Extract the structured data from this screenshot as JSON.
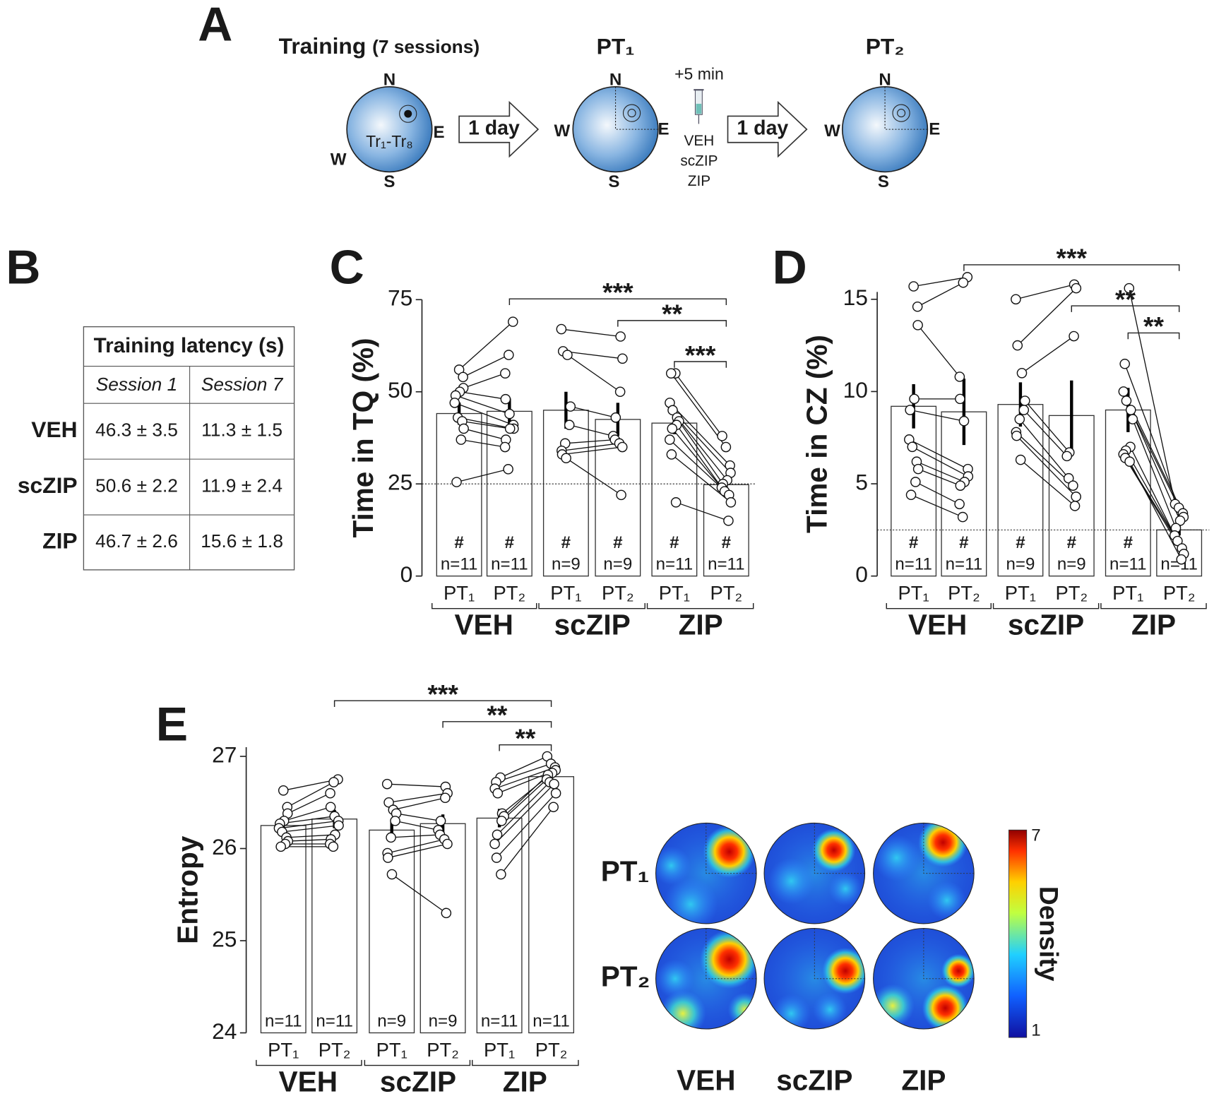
{
  "panels": [
    "A",
    "B",
    "C",
    "D",
    "E"
  ],
  "diagram": {
    "training": "Training",
    "sessions": "(7 sessions)",
    "compass": [
      "N",
      "E",
      "S",
      "W"
    ],
    "trials": "Tr₁-Tr₈",
    "arrow": "1 day",
    "pt1": "PT₁",
    "pt2": "PT₂",
    "inject_time": "+5 min",
    "drugs": [
      "VEH",
      "scZIP",
      "ZIP"
    ]
  },
  "table": {
    "title": "Training latency (s)",
    "columns": [
      "Session 1",
      "Session 7"
    ],
    "rows": [
      [
        "VEH",
        "46.3 ± 3.5",
        "11.3 ± 1.5"
      ],
      [
        "scZIP",
        "50.6 ± 2.2",
        "11.9 ± 2.4"
      ],
      [
        "ZIP",
        "46.7 ± 2.6",
        "15.6 ± 1.8"
      ]
    ]
  },
  "chart_data": [
    {
      "type": "bar",
      "ylabel": "Time in TQ (%)",
      "ylim": [
        0,
        75
      ],
      "yticks": [
        0,
        25,
        50,
        75
      ],
      "chance": 25,
      "categories": [
        "PT₁",
        "PT₂",
        "PT₁",
        "PT₂",
        "PT₁",
        "PT₂"
      ],
      "groups": [
        "VEH",
        "scZIP",
        "ZIP"
      ],
      "values": [
        44.1,
        44.7,
        45,
        42.5,
        41.5,
        24.8
      ],
      "errors": [
        3,
        3.5,
        5,
        4.5,
        3,
        2
      ],
      "marks": [
        "#",
        "#",
        "#",
        "#",
        "#",
        "#"
      ],
      "n_labels": [
        "n=11",
        "n=11",
        "n=9",
        "n=9",
        "n=11",
        "n=11"
      ],
      "points": [
        [
          56,
          54,
          51,
          50,
          49,
          47,
          43,
          42,
          40,
          37,
          25.5
        ],
        [
          69,
          60,
          55,
          48,
          44,
          41,
          40,
          40,
          37,
          35,
          29
        ],
        [
          67,
          61,
          60,
          46,
          41,
          36,
          34,
          33,
          32
        ],
        [
          65,
          59,
          50,
          43,
          38,
          37,
          36,
          35,
          22
        ],
        [
          55,
          55,
          47,
          45,
          43,
          42,
          41,
          40,
          37,
          33,
          20
        ],
        [
          38,
          35,
          30,
          28,
          26,
          25,
          24,
          23,
          22,
          20,
          15
        ]
      ],
      "significance": [
        "***",
        "**",
        "***"
      ]
    },
    {
      "type": "bar",
      "ylabel": "Time in CZ (%)",
      "ylim": [
        0,
        15.4
      ],
      "yticks": [
        0,
        5,
        10,
        15
      ],
      "chance": 2.5,
      "categories": [
        "PT₁",
        "PT₂",
        "PT₁",
        "PT₂",
        "PT₁",
        "PT₂"
      ],
      "groups": [
        "VEH",
        "scZIP",
        "ZIP"
      ],
      "values": [
        9.2,
        8.9,
        9.3,
        8.7,
        9.0,
        2.5
      ],
      "errors": [
        1.2,
        1.8,
        1.2,
        1.9,
        1.2,
        0.3
      ],
      "marks": [
        "#",
        "#",
        "#",
        "#",
        "#"
      ],
      "n_labels": [
        "n=11",
        "n=11",
        "n=9",
        "n=9",
        "n=11",
        "n=11"
      ],
      "points": [
        [
          15.7,
          14.6,
          13.6,
          9.6,
          9.0,
          7.4,
          7.0,
          6.2,
          5.8,
          5.1,
          4.4
        ],
        [
          16.2,
          15.9,
          10.8,
          9.6,
          8.4,
          5.8,
          5.4,
          5.1,
          4.9,
          3.9,
          3.2
        ],
        [
          15.0,
          12.5,
          11.0,
          9.5,
          9.0,
          8.5,
          7.8,
          7.6,
          6.3
        ],
        [
          15.8,
          15.6,
          13.0,
          6.7,
          6.5,
          5.3,
          4.9,
          4.3,
          3.8
        ],
        [
          15.6,
          11.5,
          10.0,
          9.5,
          9.0,
          8.5,
          7.0,
          6.8,
          6.6,
          6.4,
          6.2
        ],
        [
          3.9,
          3.7,
          3.4,
          3.2,
          3.0,
          2.6,
          2.2,
          1.9,
          1.5,
          1.2,
          0.9
        ]
      ],
      "significance": [
        "***",
        "**",
        "**"
      ]
    },
    {
      "type": "bar",
      "ylabel": "Entropy",
      "ylim": [
        24,
        27.1
      ],
      "yticks": [
        24,
        25,
        26,
        27
      ],
      "categories": [
        "PT₁",
        "PT₂",
        "PT₁",
        "PT₂",
        "PT₁",
        "PT₂"
      ],
      "groups": [
        "VEH",
        "scZIP",
        "ZIP"
      ],
      "values": [
        26.25,
        26.32,
        26.2,
        26.27,
        26.33,
        26.78
      ],
      "errors": [
        0.07,
        0.1,
        0.12,
        0.1,
        0.1,
        0.07
      ],
      "n_labels": [
        "n=11",
        "n=11",
        "n=9",
        "n=9",
        "n=11",
        "n=11"
      ],
      "points": [
        [
          26.63,
          26.45,
          26.38,
          26.3,
          26.27,
          26.22,
          26.18,
          26.12,
          26.08,
          26.05,
          26.02
        ],
        [
          26.75,
          26.72,
          26.6,
          26.45,
          26.35,
          26.3,
          26.25,
          26.15,
          26.1,
          26.05,
          26.02
        ],
        [
          26.7,
          26.5,
          26.42,
          26.38,
          26.3,
          26.12,
          25.95,
          25.9,
          25.72
        ],
        [
          26.67,
          26.6,
          26.55,
          26.3,
          26.2,
          26.15,
          26.1,
          26.05,
          25.3
        ],
        [
          26.77,
          26.72,
          26.65,
          26.6,
          26.38,
          26.35,
          26.3,
          26.15,
          26.05,
          25.9,
          25.72
        ],
        [
          27.0,
          26.92,
          26.88,
          26.85,
          26.82,
          26.8,
          26.75,
          26.72,
          26.7,
          26.6,
          26.45
        ]
      ],
      "significance": [
        "***",
        "**",
        "**"
      ]
    }
  ],
  "heatmap": {
    "rows": [
      "PT₁",
      "PT₂"
    ],
    "columns": [
      "VEH",
      "scZIP",
      "ZIP"
    ],
    "colorbar_label": "Density",
    "colorbar_ticks": [
      1,
      7
    ]
  }
}
